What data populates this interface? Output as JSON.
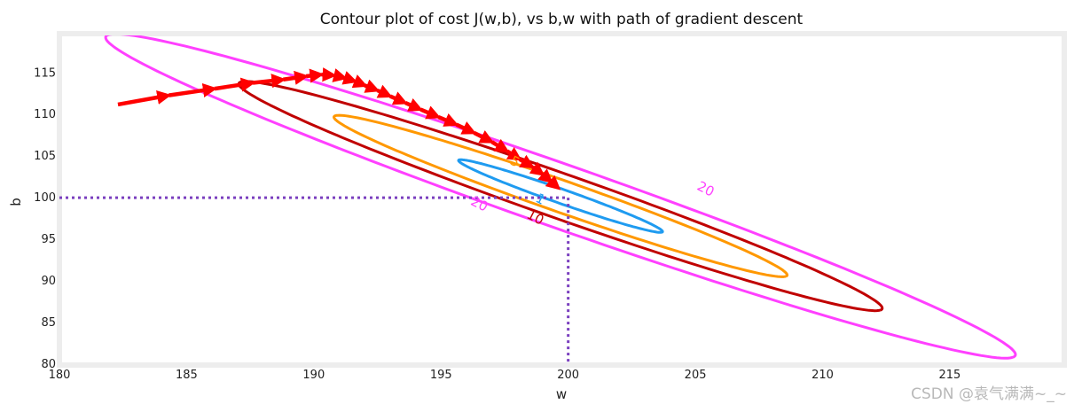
{
  "chart_data": {
    "type": "contour",
    "title": "Contour plot of cost J(w,b), vs b,w with path of gradient descent",
    "xlabel": "w",
    "ylabel": "b",
    "xlim": [
      180,
      219.5
    ],
    "ylim": [
      80,
      119.5
    ],
    "xticks": [
      180,
      185,
      190,
      195,
      200,
      205,
      210,
      215
    ],
    "yticks": [
      80,
      85,
      90,
      95,
      100,
      105,
      110,
      115
    ],
    "grid": false,
    "contour_center": {
      "w": 199.7,
      "b": 100.2
    },
    "contours": [
      {
        "level": 1,
        "label": "1",
        "color": "#1f9bf0",
        "semi_major": 5.9,
        "semi_minor": 0.62,
        "angle_deg": -47.5,
        "label_at": {
          "w": 198.9,
          "b": 99.8
        }
      },
      {
        "level": 5,
        "label": "5",
        "color": "#ff9800",
        "semi_major": 13.1,
        "semi_minor": 1.38,
        "angle_deg": -47.5,
        "label_at": {
          "w": 197.9,
          "b": 104.3
        }
      },
      {
        "level": 10,
        "label": "10",
        "color": "#c00000",
        "semi_major": 18.6,
        "semi_minor": 1.95,
        "angle_deg": -47.5,
        "label_at": {
          "w": 198.7,
          "b": 97.6
        }
      },
      {
        "level": 20,
        "label": "20",
        "color": "#ff40ff",
        "semi_major": 26.3,
        "semi_minor": 2.76,
        "angle_deg": -47.5,
        "label_at_1": {
          "w": 196.5,
          "b": 99.2
        },
        "label_at_2": {
          "w": 205.4,
          "b": 101.0
        }
      }
    ],
    "optimum_marker": {
      "w": 200,
      "b": 100,
      "color": "#7a3fbf",
      "style": "dotted"
    },
    "descent_path": {
      "color": "#ff0000",
      "points": [
        {
          "w": 182.3,
          "b": 111.2
        },
        {
          "w": 184.3,
          "b": 112.3
        },
        {
          "w": 186.1,
          "b": 113.1
        },
        {
          "w": 187.6,
          "b": 113.8
        },
        {
          "w": 188.8,
          "b": 114.2
        },
        {
          "w": 189.7,
          "b": 114.6
        },
        {
          "w": 190.3,
          "b": 114.8
        },
        {
          "w": 190.8,
          "b": 114.7
        },
        {
          "w": 191.2,
          "b": 114.4
        },
        {
          "w": 191.6,
          "b": 114.0
        },
        {
          "w": 192.0,
          "b": 113.5
        },
        {
          "w": 192.5,
          "b": 112.9
        },
        {
          "w": 193.0,
          "b": 112.2
        },
        {
          "w": 193.6,
          "b": 111.4
        },
        {
          "w": 194.2,
          "b": 110.6
        },
        {
          "w": 194.9,
          "b": 109.7
        },
        {
          "w": 195.6,
          "b": 108.8
        },
        {
          "w": 196.3,
          "b": 107.8
        },
        {
          "w": 197.0,
          "b": 106.7
        },
        {
          "w": 197.6,
          "b": 105.6
        },
        {
          "w": 198.1,
          "b": 104.6
        },
        {
          "w": 198.6,
          "b": 103.7
        },
        {
          "w": 199.0,
          "b": 102.8
        },
        {
          "w": 199.3,
          "b": 102.0
        },
        {
          "w": 199.6,
          "b": 101.2
        }
      ]
    }
  },
  "watermark": "CSDN @袁气满满~_~"
}
